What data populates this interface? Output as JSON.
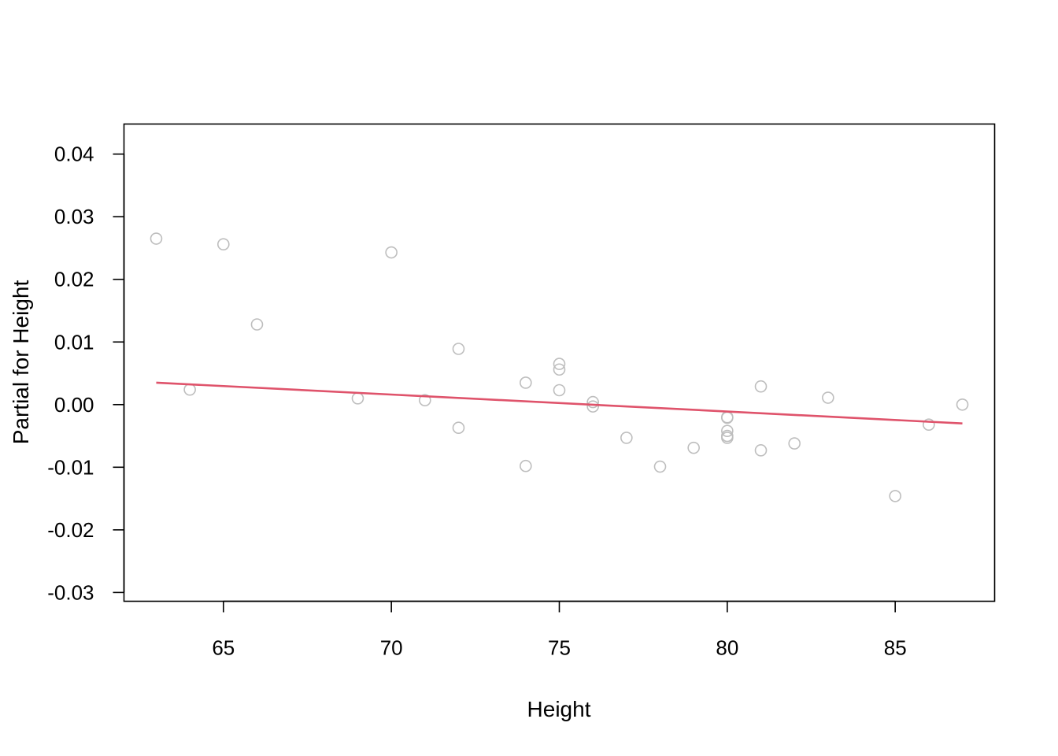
{
  "chart_data": {
    "type": "scatter",
    "title": "",
    "xlabel": "Height",
    "ylabel": "Partial for Height",
    "xlim": [
      62.04,
      87.96
    ],
    "ylim": [
      -0.0314,
      0.0448
    ],
    "x_ticks": [
      65,
      70,
      75,
      80,
      85
    ],
    "x_tick_labels": [
      "65",
      "70",
      "75",
      "80",
      "85"
    ],
    "y_ticks": [
      -0.03,
      -0.02,
      -0.01,
      0.0,
      0.01,
      0.02,
      0.03,
      0.04
    ],
    "y_tick_labels": [
      "-0.03",
      "-0.02",
      "-0.01",
      "0.00",
      "0.01",
      "0.02",
      "0.03",
      "0.04"
    ],
    "grid": false,
    "legend": "none",
    "colors": {
      "points": "#bebebe",
      "fit_line": "#df536b",
      "axis": "#000000"
    },
    "series": [
      {
        "kind": "points",
        "x": [
          63,
          64,
          65,
          66,
          69,
          70,
          71,
          72,
          72,
          74,
          74,
          75,
          75,
          75,
          76,
          76,
          77,
          78,
          79,
          80,
          80,
          80,
          80,
          80,
          81,
          81,
          82,
          83,
          85,
          86,
          87
        ],
        "y": [
          0.0265,
          0.0024,
          0.0256,
          0.0128,
          0.001,
          0.0243,
          0.0007,
          0.0089,
          -0.0037,
          0.0035,
          -0.0098,
          0.0065,
          0.0056,
          0.0023,
          0.0004,
          -0.0003,
          -0.0053,
          -0.0099,
          -0.0069,
          -0.002,
          -0.0021,
          -0.0042,
          -0.005,
          -0.0053,
          0.0029,
          -0.0073,
          -0.0062,
          0.0011,
          -0.0146,
          -0.0032,
          0.0
        ]
      },
      {
        "kind": "line",
        "x": [
          63,
          87
        ],
        "y": [
          0.0035,
          -0.003
        ]
      }
    ]
  }
}
